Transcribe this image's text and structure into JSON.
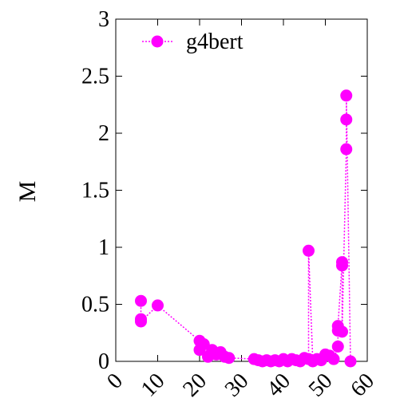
{
  "chart_data": {
    "type": "scatter",
    "title": "",
    "xlabel": "",
    "ylabel": "M",
    "xlim": [
      0,
      60
    ],
    "ylim": [
      0,
      3
    ],
    "xticks": [
      "0",
      "10",
      "20",
      "30",
      "40",
      "50",
      "60"
    ],
    "yticks": [
      "0",
      "0.5",
      "1",
      "1.5",
      "2",
      "2.5",
      "3"
    ],
    "grid": false,
    "legend": "top-left",
    "colors": {
      "series": "#ff00ff",
      "axis": "#000000"
    },
    "series": [
      {
        "name": "g4bert",
        "line": "dotted",
        "marker": "circle",
        "points": [
          [
            6,
            0.53
          ],
          [
            6,
            0.37
          ],
          [
            6,
            0.35
          ],
          [
            10,
            0.49
          ],
          [
            20,
            0.18
          ],
          [
            20,
            0.1
          ],
          [
            21,
            0.15
          ],
          [
            22,
            0.04
          ],
          [
            23,
            0.1
          ],
          [
            24,
            0.06
          ],
          [
            25,
            0.08
          ],
          [
            26,
            0.04
          ],
          [
            27,
            0.03
          ],
          [
            33,
            0.02
          ],
          [
            34,
            0.01
          ],
          [
            35,
            0.0
          ],
          [
            36,
            0.01
          ],
          [
            37,
            0.0
          ],
          [
            38,
            0.01
          ],
          [
            39,
            0.0
          ],
          [
            40,
            0.02
          ],
          [
            41,
            0.0
          ],
          [
            42,
            0.02
          ],
          [
            43,
            0.01
          ],
          [
            44,
            0.0
          ],
          [
            45,
            0.03
          ],
          [
            46,
            0.02
          ],
          [
            46,
            0.97
          ],
          [
            47,
            0.0
          ],
          [
            48,
            0.02
          ],
          [
            49,
            0.01
          ],
          [
            50,
            0.06
          ],
          [
            51,
            0.05
          ],
          [
            52,
            0.02
          ],
          [
            53,
            0.13
          ],
          [
            53,
            0.27
          ],
          [
            53,
            0.31
          ],
          [
            54,
            0.87
          ],
          [
            54,
            0.84
          ],
          [
            54,
            0.26
          ],
          [
            55,
            1.86
          ],
          [
            55,
            2.12
          ],
          [
            55,
            2.33
          ],
          [
            56,
            0.0
          ]
        ]
      }
    ]
  }
}
